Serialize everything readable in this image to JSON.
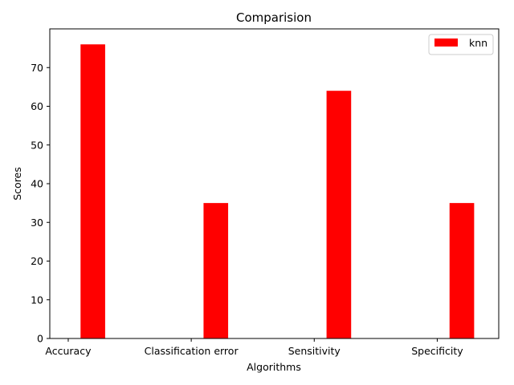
{
  "chart_data": {
    "type": "bar",
    "title": "Comparision",
    "xlabel": "Algorithms",
    "ylabel": "Scores",
    "categories": [
      "Accuracy",
      "Classification error",
      "Sensitivity",
      "Specificity"
    ],
    "series": [
      {
        "name": "knn",
        "values": [
          76,
          35,
          64,
          35
        ],
        "color": "#ff0000"
      }
    ],
    "ylim": [
      0,
      80
    ],
    "xlim": [
      -0.15,
      3.5
    ],
    "yticks": [
      0,
      10,
      20,
      30,
      40,
      50,
      60,
      70
    ],
    "bar_width": 0.2,
    "bar_offset": 0.2,
    "grid": false,
    "legend_placement": "top-right"
  }
}
